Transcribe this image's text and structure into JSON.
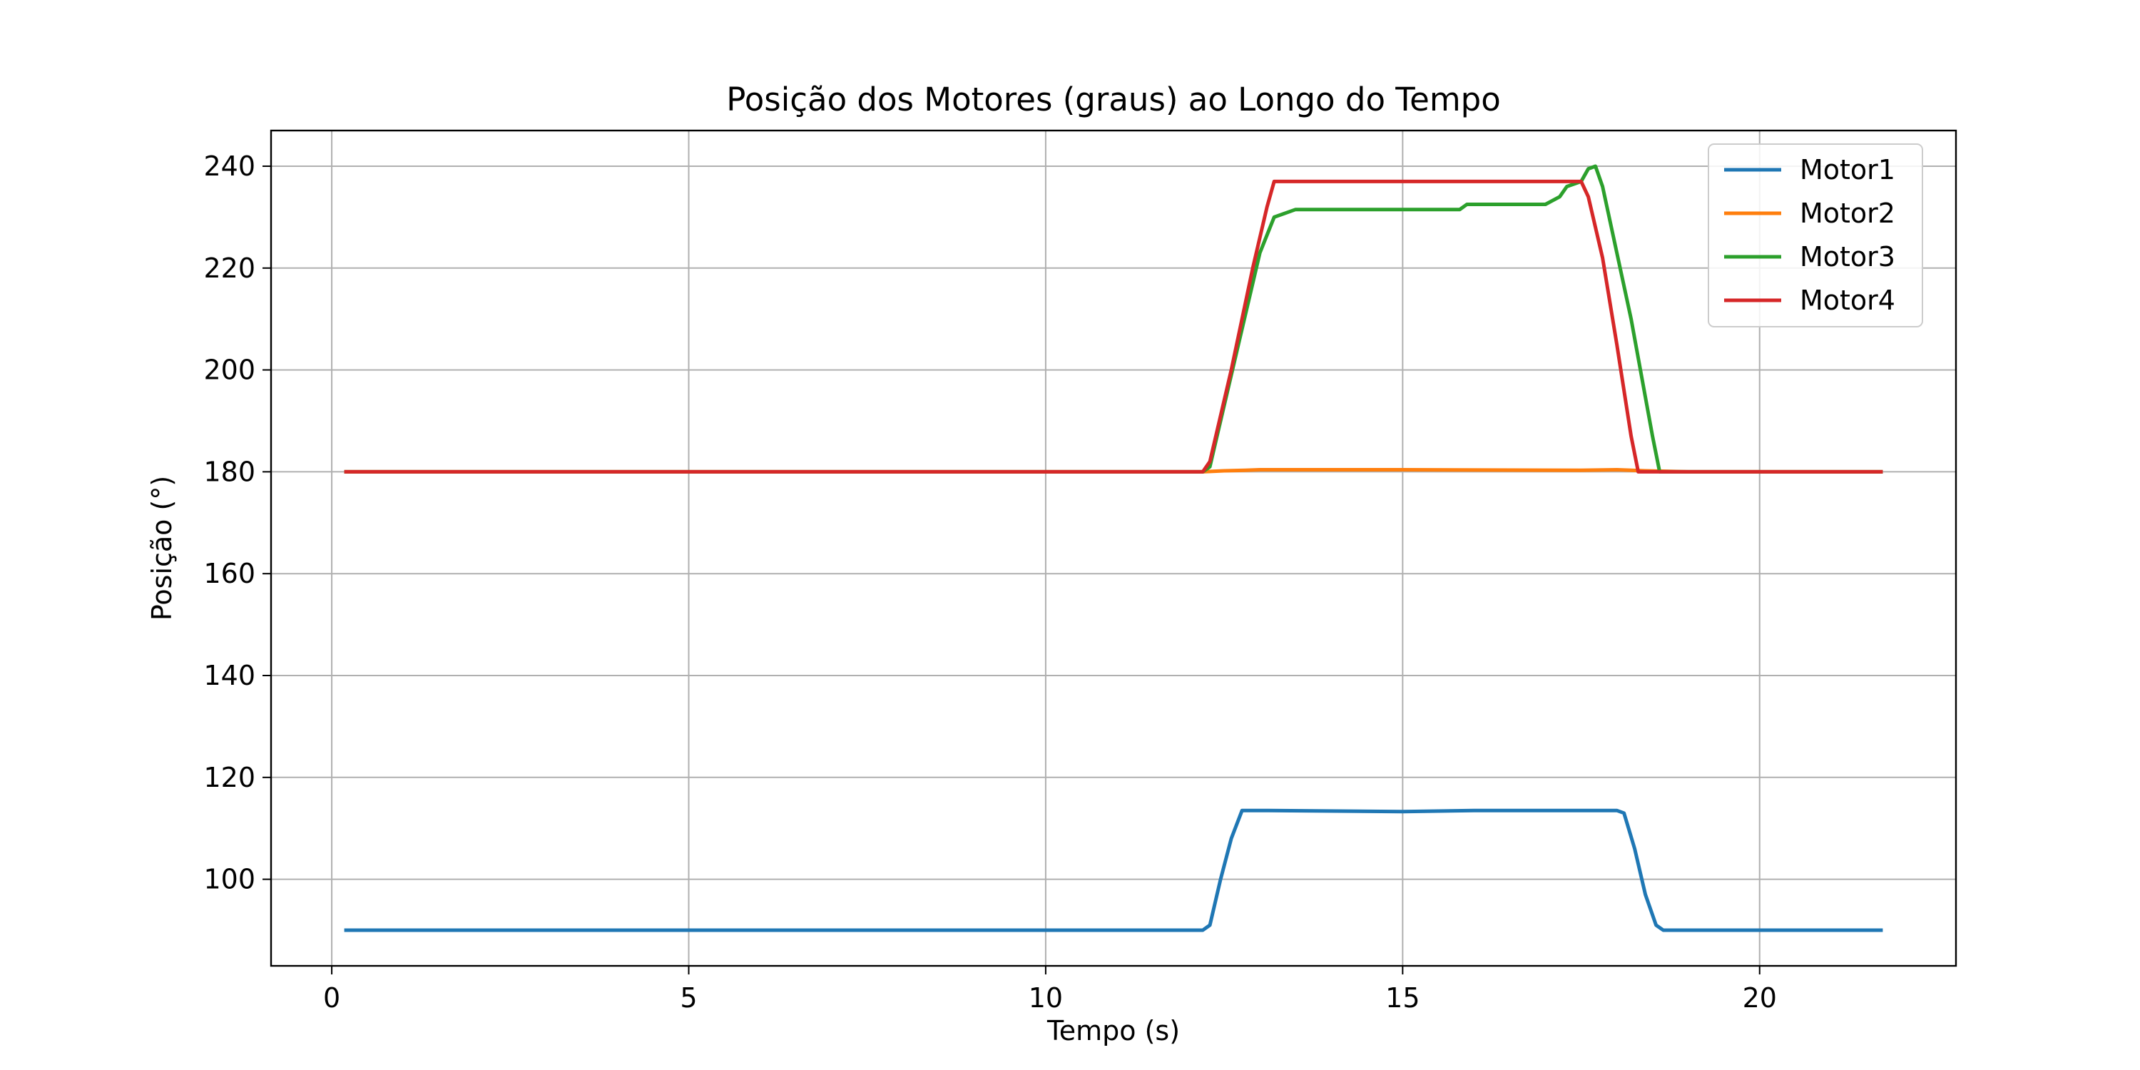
{
  "chart_data": {
    "type": "line",
    "title": "Posição dos Motores (graus) ao Longo do Tempo",
    "xlabel": "Tempo (s)",
    "ylabel": "Posição (°)",
    "xlim": [
      -0.85,
      22.75
    ],
    "ylim": [
      83,
      247
    ],
    "xticks": [
      0,
      5,
      10,
      15,
      20
    ],
    "yticks": [
      100,
      120,
      140,
      160,
      180,
      200,
      220,
      240
    ],
    "grid": true,
    "legend_position": "top-right",
    "series": [
      {
        "name": "Motor1",
        "color": "#1f77b4",
        "x": [
          0.2,
          12.2,
          12.3,
          12.45,
          12.6,
          12.75,
          13.0,
          15.0,
          16.0,
          17.0,
          18.0,
          18.1,
          18.25,
          18.4,
          18.55,
          18.65,
          19.0,
          21.7
        ],
        "y": [
          90.0,
          90.0,
          91.0,
          100.0,
          108.0,
          113.5,
          113.5,
          113.3,
          113.5,
          113.5,
          113.5,
          113.0,
          106.0,
          97.0,
          91.0,
          90.0,
          90.0,
          90.0
        ]
      },
      {
        "name": "Motor2",
        "color": "#ff7f0e",
        "x": [
          0.2,
          12.2,
          12.5,
          12.8,
          13.0,
          15.0,
          17.5,
          18.0,
          18.4,
          19.0,
          21.7
        ],
        "y": [
          180.0,
          180.0,
          180.2,
          180.3,
          180.4,
          180.4,
          180.3,
          180.4,
          180.2,
          180.0,
          180.0
        ]
      },
      {
        "name": "Motor3",
        "color": "#2ca02c",
        "x": [
          0.2,
          12.2,
          12.3,
          12.7,
          13.0,
          13.2,
          13.5,
          15.0,
          15.8,
          15.9,
          16.5,
          17.0,
          17.2,
          17.3,
          17.5,
          17.6,
          17.7,
          17.8,
          18.2,
          18.5,
          18.6,
          19.0,
          21.7
        ],
        "y": [
          180.0,
          180.0,
          181.0,
          205.0,
          223.0,
          230.0,
          231.5,
          231.5,
          231.5,
          232.5,
          232.5,
          232.5,
          234.0,
          236.0,
          237.0,
          239.5,
          240.0,
          236.0,
          210.0,
          187.0,
          180.0,
          180.0,
          180.0
        ]
      },
      {
        "name": "Motor4",
        "color": "#d62728",
        "x": [
          0.2,
          12.2,
          12.3,
          12.6,
          12.9,
          13.1,
          13.2,
          15.0,
          17.0,
          17.5,
          17.6,
          17.8,
          18.0,
          18.2,
          18.3,
          19.0,
          21.7
        ],
        "y": [
          180.0,
          180.0,
          182.0,
          200.0,
          220.0,
          232.0,
          237.0,
          237.0,
          237.0,
          237.0,
          234.0,
          222.0,
          205.0,
          187.0,
          180.0,
          180.0,
          180.0
        ]
      }
    ]
  }
}
